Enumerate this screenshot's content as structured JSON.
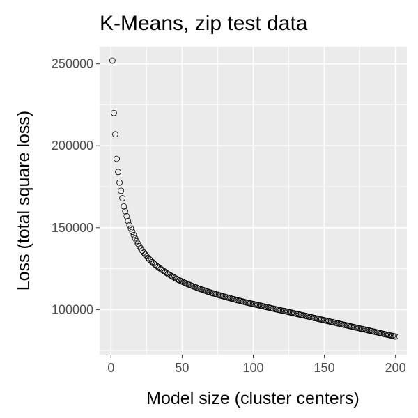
{
  "chart_data": {
    "type": "scatter",
    "title": "K-Means, zip test data",
    "xlabel": "Model size (cluster centers)",
    "ylabel": "Loss (total square loss)",
    "xlim": [
      -8,
      208
    ],
    "ylim": [
      72500,
      260500
    ],
    "x_ticks": [
      0,
      50,
      100,
      150,
      200
    ],
    "y_ticks": [
      100000,
      150000,
      200000,
      250000
    ],
    "x_tick_labels": [
      "0",
      "50",
      "100",
      "150",
      "200"
    ],
    "y_tick_labels": [
      "100000",
      "150000",
      "200000",
      "250000"
    ],
    "grid": true,
    "legend": "none",
    "panel_background": "#ebebeb",
    "grid_color": "#ffffff",
    "marker": "open-circle",
    "series": [
      {
        "x": [
          1,
          2,
          3,
          4,
          5,
          6,
          7,
          8,
          9,
          10,
          11,
          12,
          13,
          14,
          15,
          16,
          17,
          18,
          19,
          20,
          21,
          22,
          23,
          24,
          25,
          26,
          27,
          28,
          29,
          30,
          31,
          32,
          33,
          34,
          35,
          36,
          37,
          38,
          39,
          40,
          41,
          42,
          43,
          44,
          45,
          46,
          47,
          48,
          49,
          50,
          51,
          52,
          53,
          54,
          55,
          56,
          57,
          58,
          59,
          60,
          61,
          62,
          63,
          64,
          65,
          66,
          67,
          68,
          69,
          70,
          71,
          72,
          73,
          74,
          75,
          76,
          77,
          78,
          79,
          80,
          81,
          82,
          83,
          84,
          85,
          86,
          87,
          88,
          89,
          90,
          91,
          92,
          93,
          94,
          95,
          96,
          97,
          98,
          99,
          100,
          101,
          102,
          103,
          104,
          105,
          106,
          107,
          108,
          109,
          110,
          111,
          112,
          113,
          114,
          115,
          116,
          117,
          118,
          119,
          120,
          121,
          122,
          123,
          124,
          125,
          126,
          127,
          128,
          129,
          130,
          131,
          132,
          133,
          134,
          135,
          136,
          137,
          138,
          139,
          140,
          141,
          142,
          143,
          144,
          145,
          146,
          147,
          148,
          149,
          150,
          151,
          152,
          153,
          154,
          155,
          156,
          157,
          158,
          159,
          160,
          161,
          162,
          163,
          164,
          165,
          166,
          167,
          168,
          169,
          170,
          171,
          172,
          173,
          174,
          175,
          176,
          177,
          178,
          179,
          180,
          181,
          182,
          183,
          184,
          185,
          186,
          187,
          188,
          189,
          190,
          191,
          192,
          193,
          194,
          195,
          196,
          197,
          198,
          199,
          200
        ],
        "y": [
          252000,
          220000,
          207000,
          192000,
          184000,
          177500,
          172500,
          168000,
          163000,
          160000,
          157000,
          154000,
          151500,
          149500,
          147500,
          145500,
          143500,
          141800,
          140200,
          138700,
          137300,
          136000,
          134800,
          133700,
          132600,
          131600,
          130700,
          129800,
          129000,
          128200,
          127500,
          126800,
          126100,
          125400,
          124800,
          124200,
          123600,
          123000,
          122400,
          121800,
          121300,
          120800,
          120300,
          119800,
          119300,
          118800,
          118300,
          117900,
          117500,
          117100,
          116700,
          116300,
          115900,
          115500,
          115200,
          114800,
          114500,
          114100,
          113800,
          113500,
          113100,
          112800,
          112500,
          112200,
          111900,
          111600,
          111300,
          111000,
          110700,
          110400,
          110100,
          109900,
          109600,
          109300,
          109100,
          108800,
          108600,
          108300,
          108100,
          107800,
          107600,
          107300,
          107100,
          106900,
          106600,
          106400,
          106200,
          105900,
          105700,
          105500,
          105300,
          105100,
          104800,
          104600,
          104400,
          104200,
          104000,
          103800,
          103600,
          103400,
          103200,
          103000,
          102800,
          102600,
          102400,
          102200,
          102000,
          101800,
          101600,
          101400,
          101200,
          101000,
          100800,
          100600,
          100400,
          100200,
          100000,
          99800,
          99600,
          99400,
          99200,
          99100,
          98900,
          98700,
          98500,
          98300,
          98100,
          97900,
          97700,
          97500,
          97300,
          97100,
          96900,
          96700,
          96500,
          96300,
          96100,
          95900,
          95700,
          95500,
          95300,
          95100,
          94900,
          94700,
          94500,
          94300,
          94100,
          93900,
          93700,
          93500,
          93300,
          93100,
          92900,
          92700,
          92500,
          92300,
          92100,
          91900,
          91700,
          91500,
          91300,
          91100,
          90900,
          90700,
          90500,
          90300,
          90100,
          89900,
          89700,
          89500,
          89300,
          89100,
          88900,
          88700,
          88500,
          88300,
          88100,
          87900,
          87700,
          87500,
          87300,
          87100,
          86900,
          86700,
          86500,
          86300,
          86100,
          85900,
          85700,
          85500,
          85300,
          85100,
          84900,
          84700,
          84500,
          84300,
          84100,
          83900,
          83700,
          83500
        ]
      }
    ]
  }
}
